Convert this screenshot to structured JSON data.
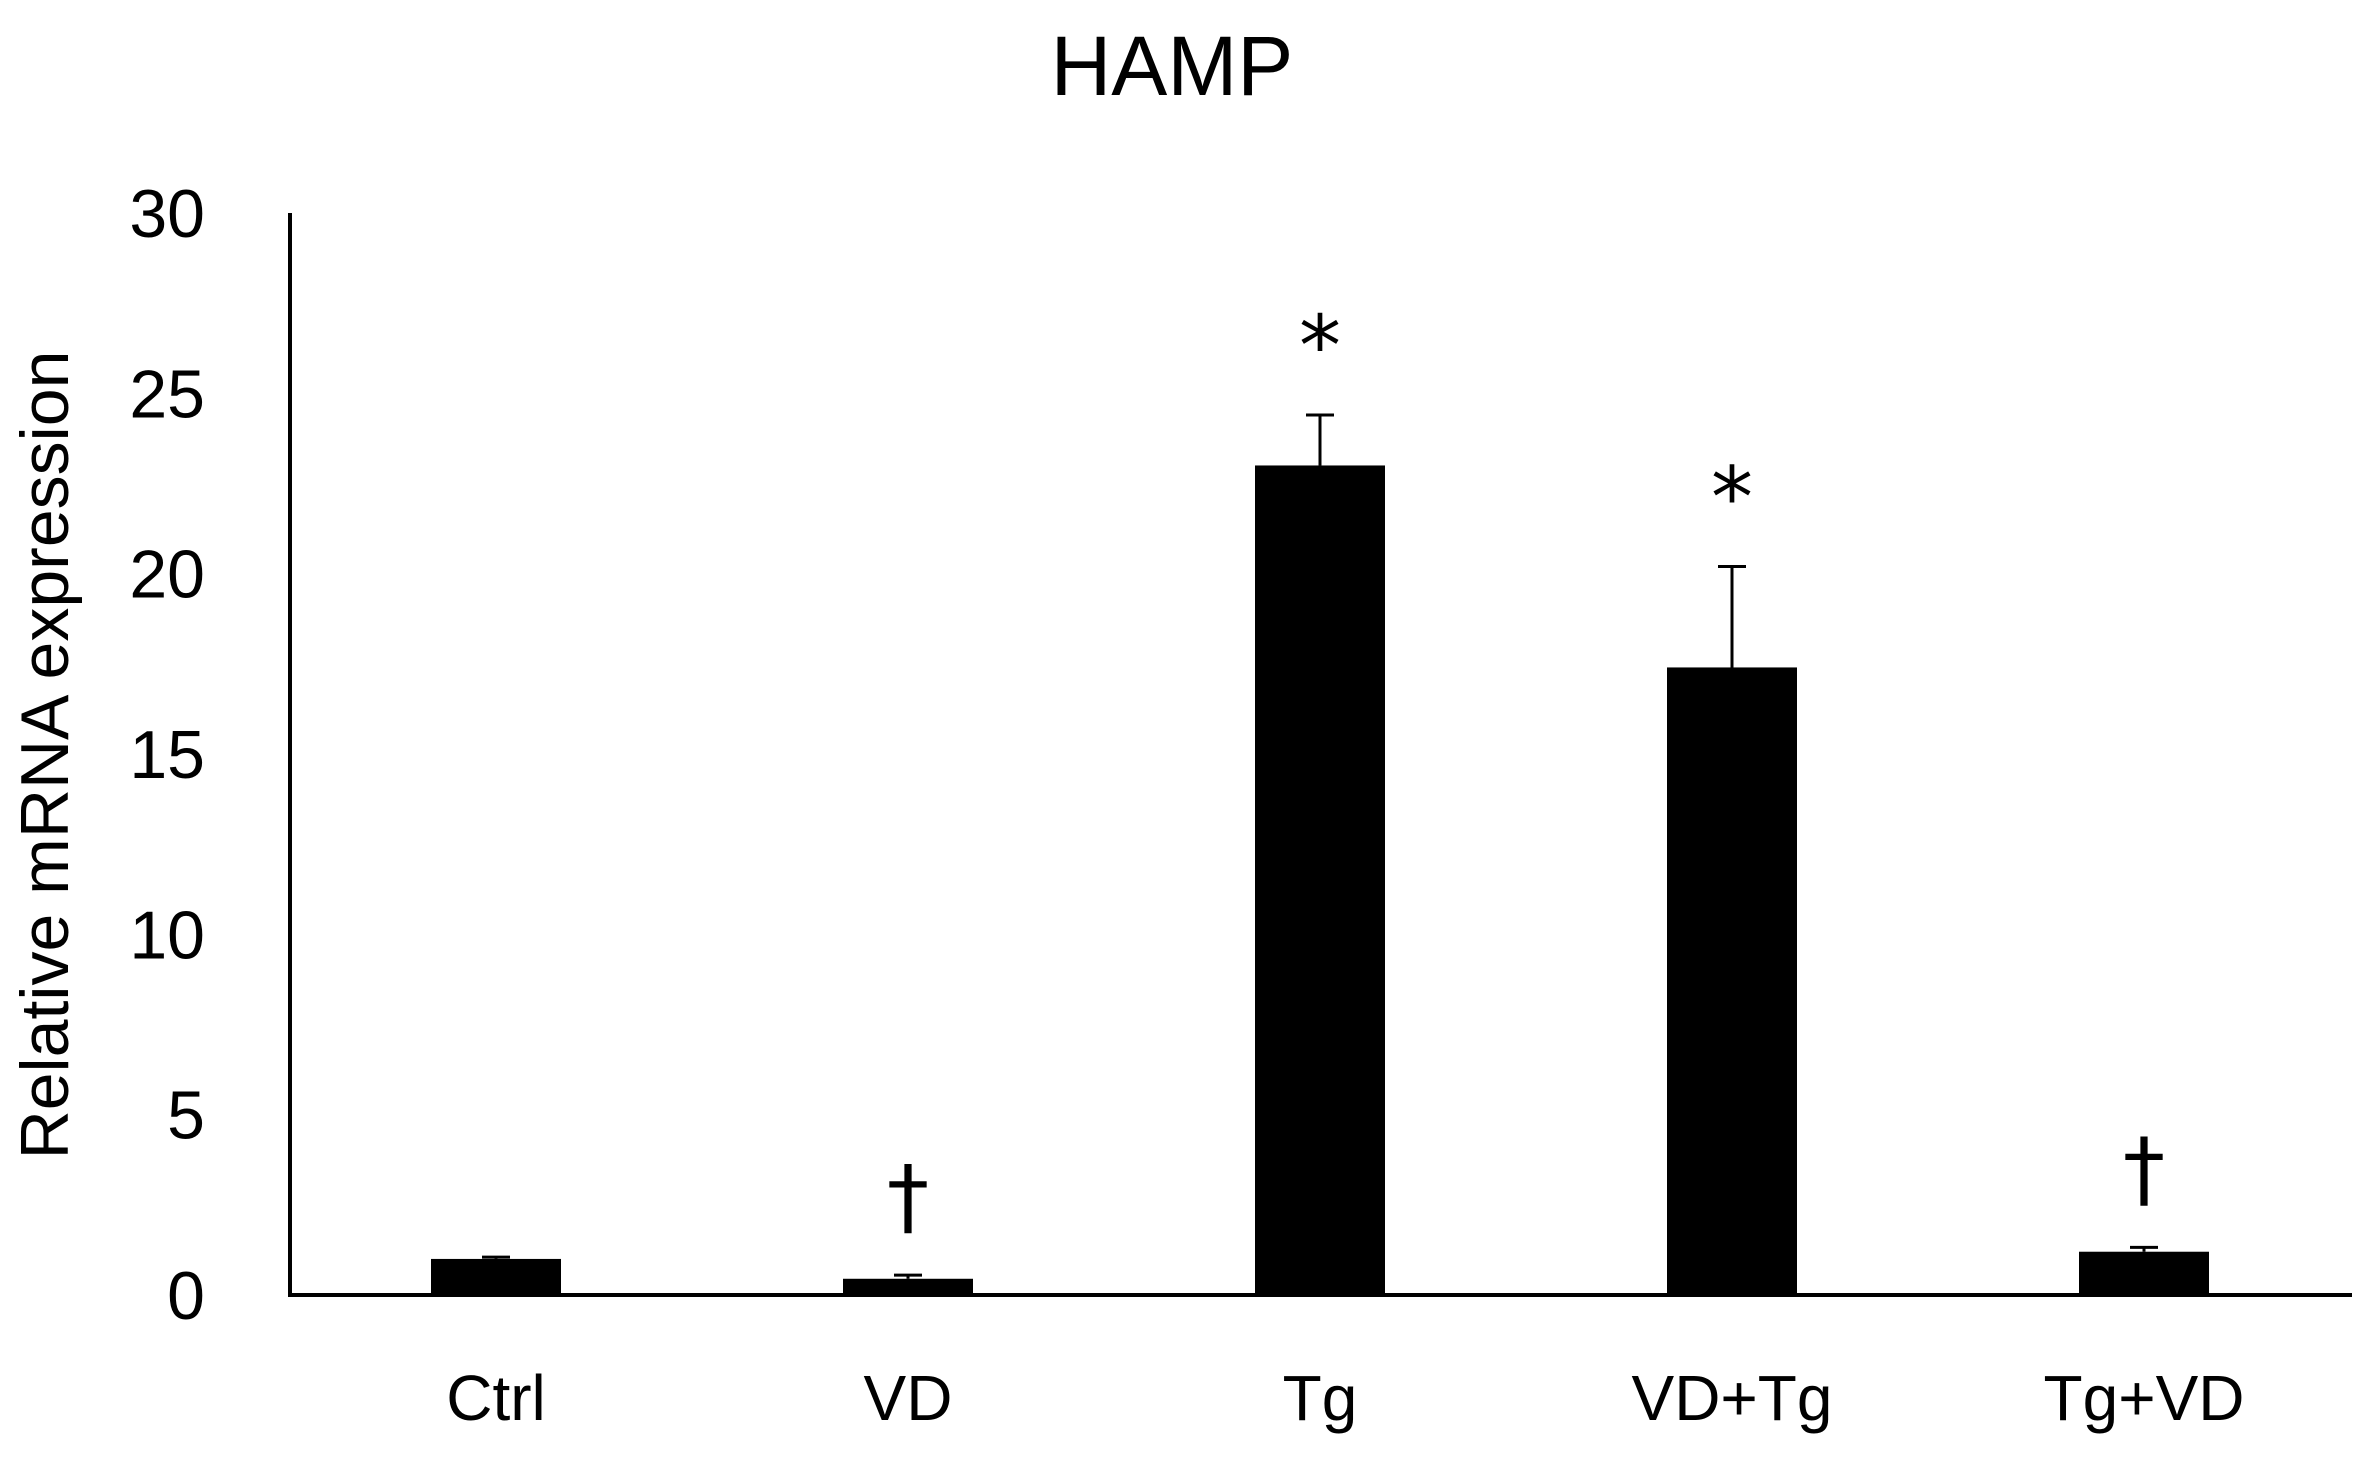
{
  "chart_data": {
    "type": "bar",
    "title": "HAMP",
    "xlabel": "",
    "ylabel": "Relative mRNA expression",
    "ylim": [
      0,
      30
    ],
    "yticks": [
      0,
      5,
      10,
      15,
      20,
      25,
      30
    ],
    "categories": [
      "Ctrl",
      "VD",
      "Tg",
      "VD+Tg",
      "Tg+VD"
    ],
    "values": [
      1.0,
      0.45,
      23.0,
      17.4,
      1.2
    ],
    "errors": [
      0.05,
      0.1,
      1.4,
      2.8,
      0.12
    ],
    "annotations": [
      "",
      "†",
      "*",
      "*",
      "†"
    ],
    "bar_color": "#000000",
    "grid": false,
    "legend": "none"
  }
}
